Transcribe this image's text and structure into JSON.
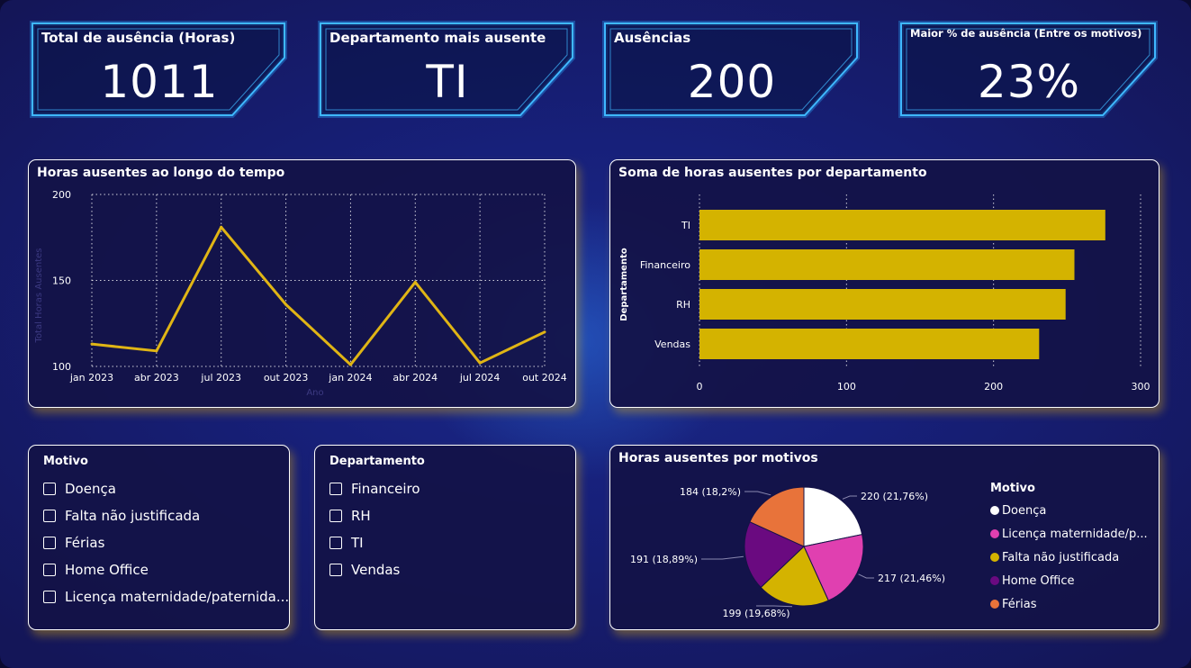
{
  "kpis": [
    {
      "title": "Total de ausência (Horas)",
      "value": "1011"
    },
    {
      "title": "Departamento mais ausente",
      "value": "TI"
    },
    {
      "title": "Ausências",
      "value": "200"
    },
    {
      "title": "Maior % de ausência (Entre os motivos)",
      "value": "23%"
    }
  ],
  "colors": {
    "accent": "#d4b300",
    "neon": "#2aa8ff",
    "background": "#17207a",
    "panel": "#141246"
  },
  "chart_data": [
    {
      "type": "line",
      "title": "Horas ausentes ao longo do tempo",
      "ylabel": "Total Horas Ausentes",
      "xlabel": "Ano",
      "x": [
        "jan 2023",
        "abr 2023",
        "jul 2023",
        "out 2023",
        "jan 2024",
        "abr 2024",
        "jul 2024",
        "out 2024"
      ],
      "series": [
        {
          "values": [
            113,
            109,
            181,
            136,
            101,
            149,
            102,
            120
          ]
        }
      ],
      "yticks": [
        100,
        150,
        200
      ],
      "ylim": [
        100,
        200
      ],
      "grid": true,
      "color": "#e0b515"
    },
    {
      "type": "bar",
      "orientation": "horizontal",
      "title": "Soma de horas ausentes por departamento",
      "ylabel": "Departamento",
      "categories": [
        "TI",
        "Financeiro",
        "RH",
        "Vendas"
      ],
      "values": [
        276,
        255,
        249,
        231
      ],
      "xticks": [
        0,
        100,
        200,
        300
      ],
      "xlim": [
        0,
        300
      ],
      "grid": true,
      "color": "#d4b300"
    },
    {
      "type": "pie",
      "title": "Horas ausentes por motivos",
      "legend_title": "Motivo",
      "legend_position": "right",
      "slices": [
        {
          "label": "Doença",
          "value": 220,
          "display": "220 (21,76%)",
          "color": "#ffffff"
        },
        {
          "label": "Licença maternidade/p...",
          "value": 217,
          "display": "217 (21,46%)",
          "color": "#e040b0"
        },
        {
          "label": "Falta não justificada",
          "value": 199,
          "display": "199 (19,68%)",
          "color": "#d4b300"
        },
        {
          "label": "Home Office",
          "value": 191,
          "display": "191 (18,89%)",
          "color": "#6a0a80"
        },
        {
          "label": "Férias",
          "value": 184,
          "display": "184 (18,2%)",
          "color": "#e8733a"
        }
      ]
    }
  ],
  "slicers": {
    "motivo": {
      "title": "Motivo",
      "items": [
        "Doença",
        "Falta não justificada",
        "Férias",
        "Home Office",
        "Licença maternidade/paternida..."
      ]
    },
    "departamento": {
      "title": "Departamento",
      "items": [
        "Financeiro",
        "RH",
        "TI",
        "Vendas"
      ]
    }
  }
}
